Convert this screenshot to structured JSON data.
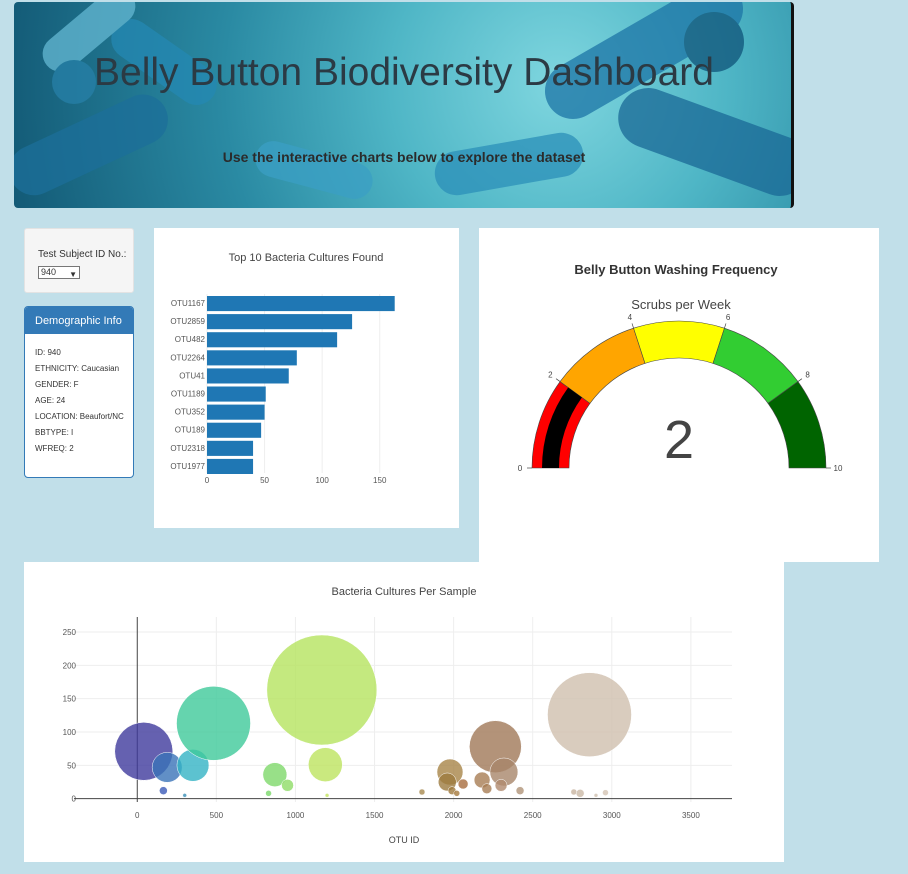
{
  "header": {
    "title": "Belly Button Biodiversity Dashboard",
    "subtitle": "Use the interactive charts below to explore the dataset"
  },
  "selector": {
    "label": "Test Subject ID No.:",
    "value": "940"
  },
  "demographics": {
    "title": "Demographic Info",
    "rows": [
      "ID: 940",
      "ETHNICITY: Caucasian",
      "GENDER: F",
      "AGE: 24",
      "LOCATION: Beaufort/NC",
      "BBTYPE: I",
      "WFREQ: 2"
    ]
  },
  "colors": {
    "bar": "#1f77b4",
    "panel_header": "#337ab7",
    "background": "#c1dfe9"
  },
  "chart_data": [
    {
      "type": "bar",
      "orientation": "horizontal",
      "title": "Top 10 Bacteria Cultures Found",
      "categories": [
        "OTU1167",
        "OTU2859",
        "OTU482",
        "OTU2264",
        "OTU41",
        "OTU1189",
        "OTU352",
        "OTU189",
        "OTU2318",
        "OTU1977"
      ],
      "values": [
        163,
        126,
        113,
        78,
        71,
        51,
        50,
        47,
        40,
        40
      ],
      "xlim": [
        0,
        165
      ],
      "xticks": [
        0,
        50,
        100,
        150
      ]
    },
    {
      "type": "gauge",
      "title": "Belly Button Washing Frequency",
      "subtitle": "Scrubs per Week",
      "value": 2,
      "range": [
        0,
        10
      ],
      "ticks": [
        0,
        2,
        4,
        6,
        8,
        10
      ],
      "steps": [
        {
          "range": [
            0,
            2
          ],
          "color": "#ff0000"
        },
        {
          "range": [
            2,
            4
          ],
          "color": "#ffa500"
        },
        {
          "range": [
            4,
            6
          ],
          "color": "#ffff00"
        },
        {
          "range": [
            6,
            8
          ],
          "color": "#32cd32"
        },
        {
          "range": [
            8,
            10
          ],
          "color": "#006400"
        }
      ],
      "bar_color": "#000000"
    },
    {
      "type": "scatter",
      "title": "Bacteria Cultures Per Sample",
      "xlabel": "OTU ID",
      "xlim": [
        -400,
        3760
      ],
      "ylim": [
        -5,
        265
      ],
      "xticks": [
        0,
        500,
        1000,
        1500,
        2000,
        2500,
        3000,
        3500
      ],
      "yticks": [
        0,
        50,
        100,
        150,
        200,
        250
      ],
      "points": [
        {
          "x": 41,
          "y": 71,
          "r": 29,
          "color": "#3f3a9c"
        },
        {
          "x": 165,
          "y": 12,
          "r": 4,
          "color": "#3b5ab8"
        },
        {
          "x": 189,
          "y": 47,
          "r": 15,
          "color": "#3a73b8"
        },
        {
          "x": 300,
          "y": 5,
          "r": 2,
          "color": "#3a8fb6"
        },
        {
          "x": 352,
          "y": 50,
          "r": 16,
          "color": "#33b3c4"
        },
        {
          "x": 482,
          "y": 113,
          "r": 37,
          "color": "#3ec99a"
        },
        {
          "x": 830,
          "y": 8,
          "r": 3,
          "color": "#7ad86a"
        },
        {
          "x": 870,
          "y": 36,
          "r": 12,
          "color": "#7ed86a"
        },
        {
          "x": 950,
          "y": 20,
          "r": 6,
          "color": "#8edc66"
        },
        {
          "x": 1167,
          "y": 163,
          "r": 55,
          "color": "#b5e35f"
        },
        {
          "x": 1189,
          "y": 51,
          "r": 17,
          "color": "#bde35f"
        },
        {
          "x": 1200,
          "y": 5,
          "r": 2,
          "color": "#c4e35f"
        },
        {
          "x": 1800,
          "y": 10,
          "r": 3,
          "color": "#a88a50"
        },
        {
          "x": 1977,
          "y": 40,
          "r": 13,
          "color": "#a88547"
        },
        {
          "x": 1960,
          "y": 25,
          "r": 9,
          "color": "#9c7a3e"
        },
        {
          "x": 1990,
          "y": 12,
          "r": 4,
          "color": "#a07a3e"
        },
        {
          "x": 2020,
          "y": 8,
          "r": 3,
          "color": "#a67a3e"
        },
        {
          "x": 2060,
          "y": 22,
          "r": 5,
          "color": "#a86d3e"
        },
        {
          "x": 2180,
          "y": 28,
          "r": 8,
          "color": "#a87d54"
        },
        {
          "x": 2210,
          "y": 15,
          "r": 5,
          "color": "#a87d54"
        },
        {
          "x": 2264,
          "y": 78,
          "r": 26,
          "color": "#a07858"
        },
        {
          "x": 2318,
          "y": 40,
          "r": 14,
          "color": "#a8866a"
        },
        {
          "x": 2300,
          "y": 20,
          "r": 6,
          "color": "#b08a6e"
        },
        {
          "x": 2420,
          "y": 12,
          "r": 4,
          "color": "#b09478"
        },
        {
          "x": 2760,
          "y": 10,
          "r": 3,
          "color": "#c8b4a0"
        },
        {
          "x": 2800,
          "y": 8,
          "r": 4,
          "color": "#cbb9a6"
        },
        {
          "x": 2859,
          "y": 126,
          "r": 42,
          "color": "#d0bfae"
        },
        {
          "x": 2900,
          "y": 5,
          "r": 2,
          "color": "#d0c0b0"
        },
        {
          "x": 2960,
          "y": 9,
          "r": 3,
          "color": "#d4c4b4"
        }
      ]
    }
  ]
}
